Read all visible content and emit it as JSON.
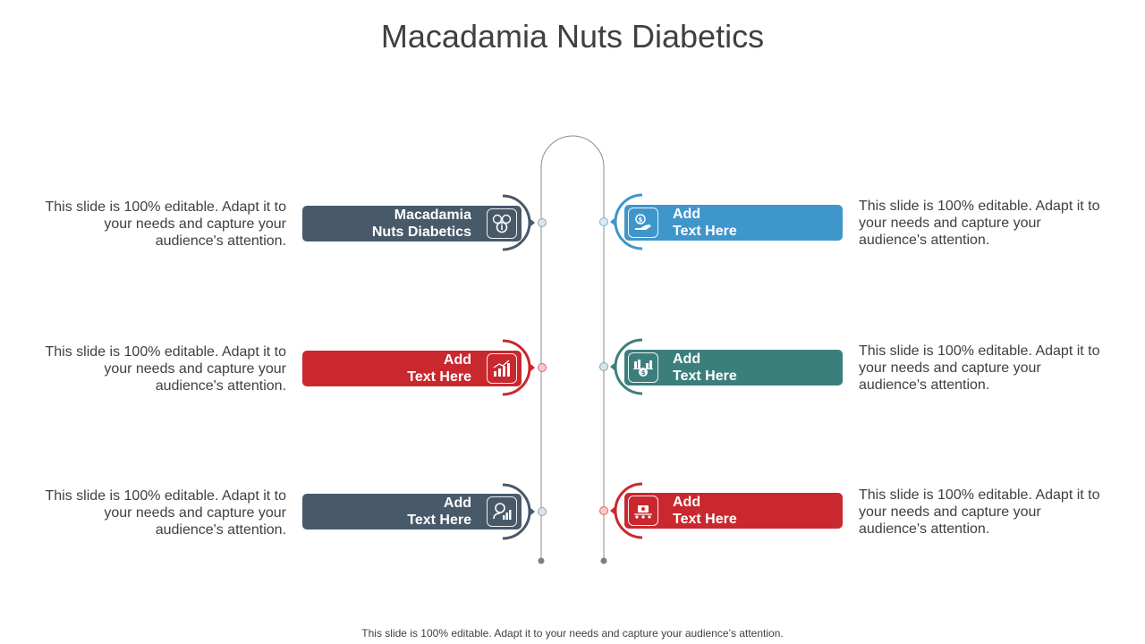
{
  "title": "Macadamia Nuts Diabetics",
  "footer": "This slide is 100% editable. Adapt it to your needs and capture your audience’s attention.",
  "colors": {
    "slate": "#485969",
    "red": "#c9282f",
    "blue": "#3f96cb",
    "teal": "#3b7f7d",
    "line": "#8c8c8c"
  },
  "items": [
    {
      "side": "left",
      "line1": "Macadamia",
      "line2": "Nuts Diabetics",
      "icon": "money-info-icon",
      "color": "#485969",
      "text": "This slide is 100% editable. Adapt it to your needs and capture your audience's attention."
    },
    {
      "side": "right",
      "line1": "Add",
      "line2": "Text Here",
      "icon": "hand-money-icon",
      "color": "#3f96cb",
      "text": "This slide is 100% editable. Adapt it to your needs and capture your audience's attention."
    },
    {
      "side": "left",
      "line1": "Add",
      "line2": "Text Here",
      "icon": "growth-chart-icon",
      "color": "#c9282f",
      "text": "This slide is 100% editable. Adapt it to your needs and capture your audience's attention."
    },
    {
      "side": "right",
      "line1": "Add",
      "line2": "Text Here",
      "icon": "money-chart-icon",
      "color": "#3b7f7d",
      "text": "This slide is 100% editable. Adapt it to your needs and capture your audience's attention."
    },
    {
      "side": "left",
      "line1": "Add",
      "line2": "Text Here",
      "icon": "user-analytics-icon",
      "color": "#485969",
      "text": "This slide is 100% editable. Adapt it to your needs and capture your audience's attention."
    },
    {
      "side": "right",
      "line1": "Add",
      "line2": "Text Here",
      "icon": "cash-register-icon",
      "color": "#c9282f",
      "text": "This slide is 100% editable. Adapt it to your needs and capture your audience's attention."
    }
  ]
}
